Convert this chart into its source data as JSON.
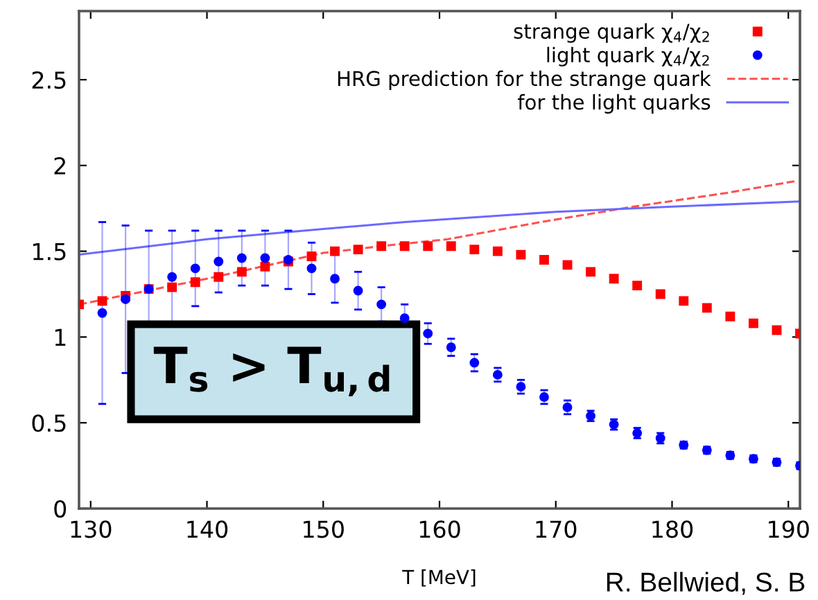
{
  "chart_data": {
    "type": "scatter",
    "xlabel": "T [MeV]",
    "xlim": [
      129,
      191
    ],
    "xticks": [
      130,
      140,
      150,
      160,
      170,
      180,
      190
    ],
    "ylim": [
      0,
      2.9
    ],
    "yticks": [
      0,
      0.5,
      1,
      1.5,
      2,
      2.5
    ],
    "grid": false,
    "legend": "top right",
    "series": [
      {
        "name": "strange quark χ$_{4}$/χ$_{2}$",
        "marker": "square",
        "color": "#ff0000",
        "x": [
          129,
          131,
          133,
          135,
          137,
          139,
          141,
          143,
          145,
          147,
          149,
          151,
          153,
          155,
          157,
          159,
          161,
          163,
          165,
          167,
          169,
          171,
          173,
          175,
          177,
          179,
          181,
          183,
          185,
          187,
          189,
          191
        ],
        "values": [
          1.19,
          1.21,
          1.24,
          1.28,
          1.29,
          1.32,
          1.35,
          1.38,
          1.41,
          1.44,
          1.47,
          1.5,
          1.51,
          1.53,
          1.53,
          1.53,
          1.53,
          1.51,
          1.5,
          1.48,
          1.45,
          1.42,
          1.38,
          1.34,
          1.3,
          1.25,
          1.21,
          1.17,
          1.12,
          1.08,
          1.04,
          1.02
        ]
      },
      {
        "name": "light quark χ$_{4}$/χ$_{2}$",
        "marker": "circle",
        "color": "#0000ff",
        "x": [
          131,
          133,
          135,
          137,
          139,
          141,
          143,
          145,
          147,
          149,
          151,
          153,
          155,
          157,
          159,
          161,
          163,
          165,
          167,
          169,
          171,
          173,
          175,
          177,
          179,
          181,
          183,
          185,
          187,
          189,
          191
        ],
        "values": [
          1.14,
          1.22,
          1.28,
          1.35,
          1.4,
          1.44,
          1.46,
          1.46,
          1.45,
          1.4,
          1.34,
          1.27,
          1.19,
          1.11,
          1.02,
          0.94,
          0.85,
          0.78,
          0.71,
          0.65,
          0.59,
          0.54,
          0.49,
          0.44,
          0.41,
          0.37,
          0.34,
          0.31,
          0.29,
          0.27,
          0.25
        ],
        "errors": [
          0.53,
          0.43,
          0.34,
          0.27,
          0.22,
          0.18,
          0.16,
          0.16,
          0.17,
          0.15,
          0.14,
          0.11,
          0.1,
          0.08,
          0.06,
          0.05,
          0.05,
          0.04,
          0.04,
          0.04,
          0.04,
          0.03,
          0.03,
          0.03,
          0.03,
          0.02,
          0.02,
          0.02,
          0.02,
          0.02,
          0.02
        ]
      },
      {
        "name": "HRG prediction for the strange quark",
        "type": "line",
        "line_style": "dashed",
        "color": "#ff5050",
        "x": [
          129,
          140,
          150,
          155,
          160.7,
          168.7,
          176.7,
          184.7,
          190.7
        ],
        "values": [
          1.19,
          1.34,
          1.49,
          1.53,
          1.57,
          1.67,
          1.76,
          1.84,
          1.91
        ]
      },
      {
        "name": "for the light quarks",
        "type": "line",
        "line_style": "solid",
        "color": "#6a6aff",
        "x": [
          129,
          140,
          150,
          157,
          170,
          180,
          191
        ],
        "values": [
          1.48,
          1.57,
          1.63,
          1.67,
          1.73,
          1.76,
          1.79
        ]
      }
    ],
    "annotations": [
      "T$_{s}$ > T$_{u,d}$",
      "R. Bellwied, S. B"
    ]
  }
}
